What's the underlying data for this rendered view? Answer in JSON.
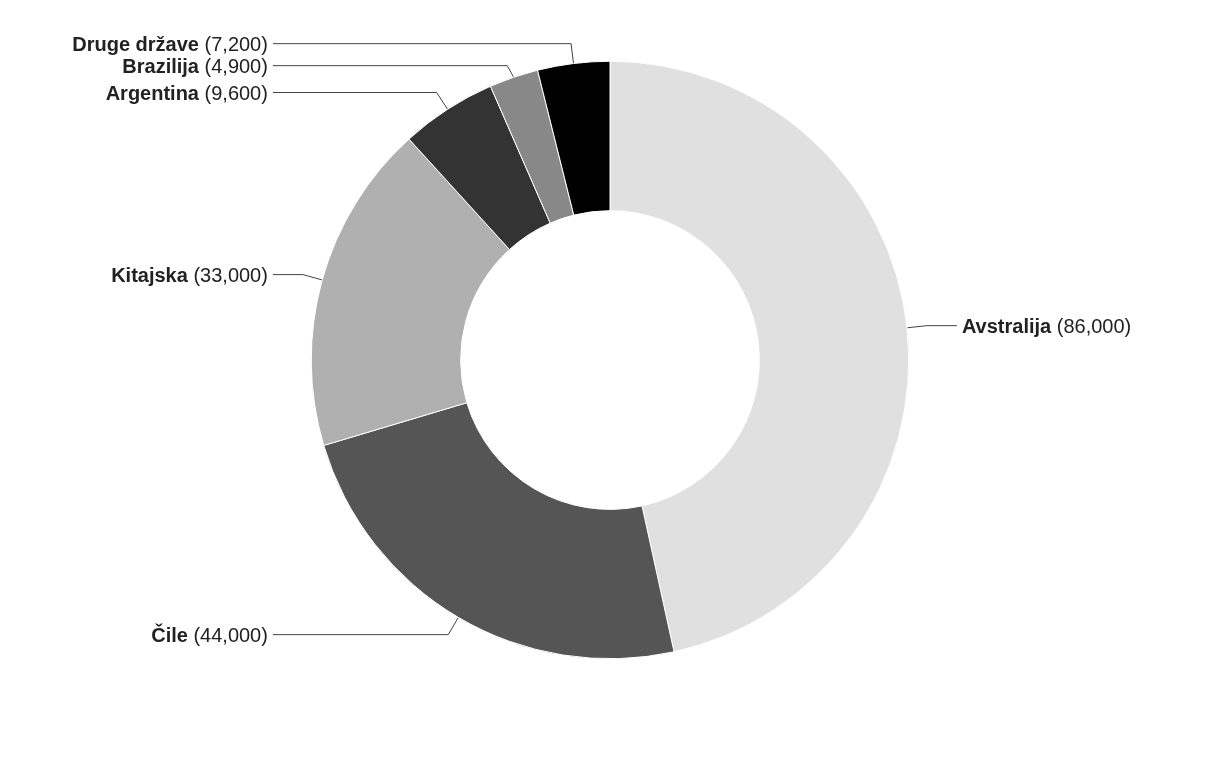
{
  "chart_data": {
    "type": "donut",
    "categories": [
      "Avstralija",
      "Čile",
      "Kitajska",
      "Argentina",
      "Brazilija",
      "Druge države"
    ],
    "values": [
      86000,
      44000,
      33000,
      9600,
      4900,
      7200
    ],
    "colors": [
      "#e0e0e0",
      "#555555",
      "#b0b0b0",
      "#333333",
      "#888888",
      "#000000"
    ],
    "value_labels": [
      "(86,000)",
      "(44,000)",
      "(33,000)",
      "(9,600)",
      "(4,900)",
      "(7,200)"
    ],
    "legend": false
  }
}
